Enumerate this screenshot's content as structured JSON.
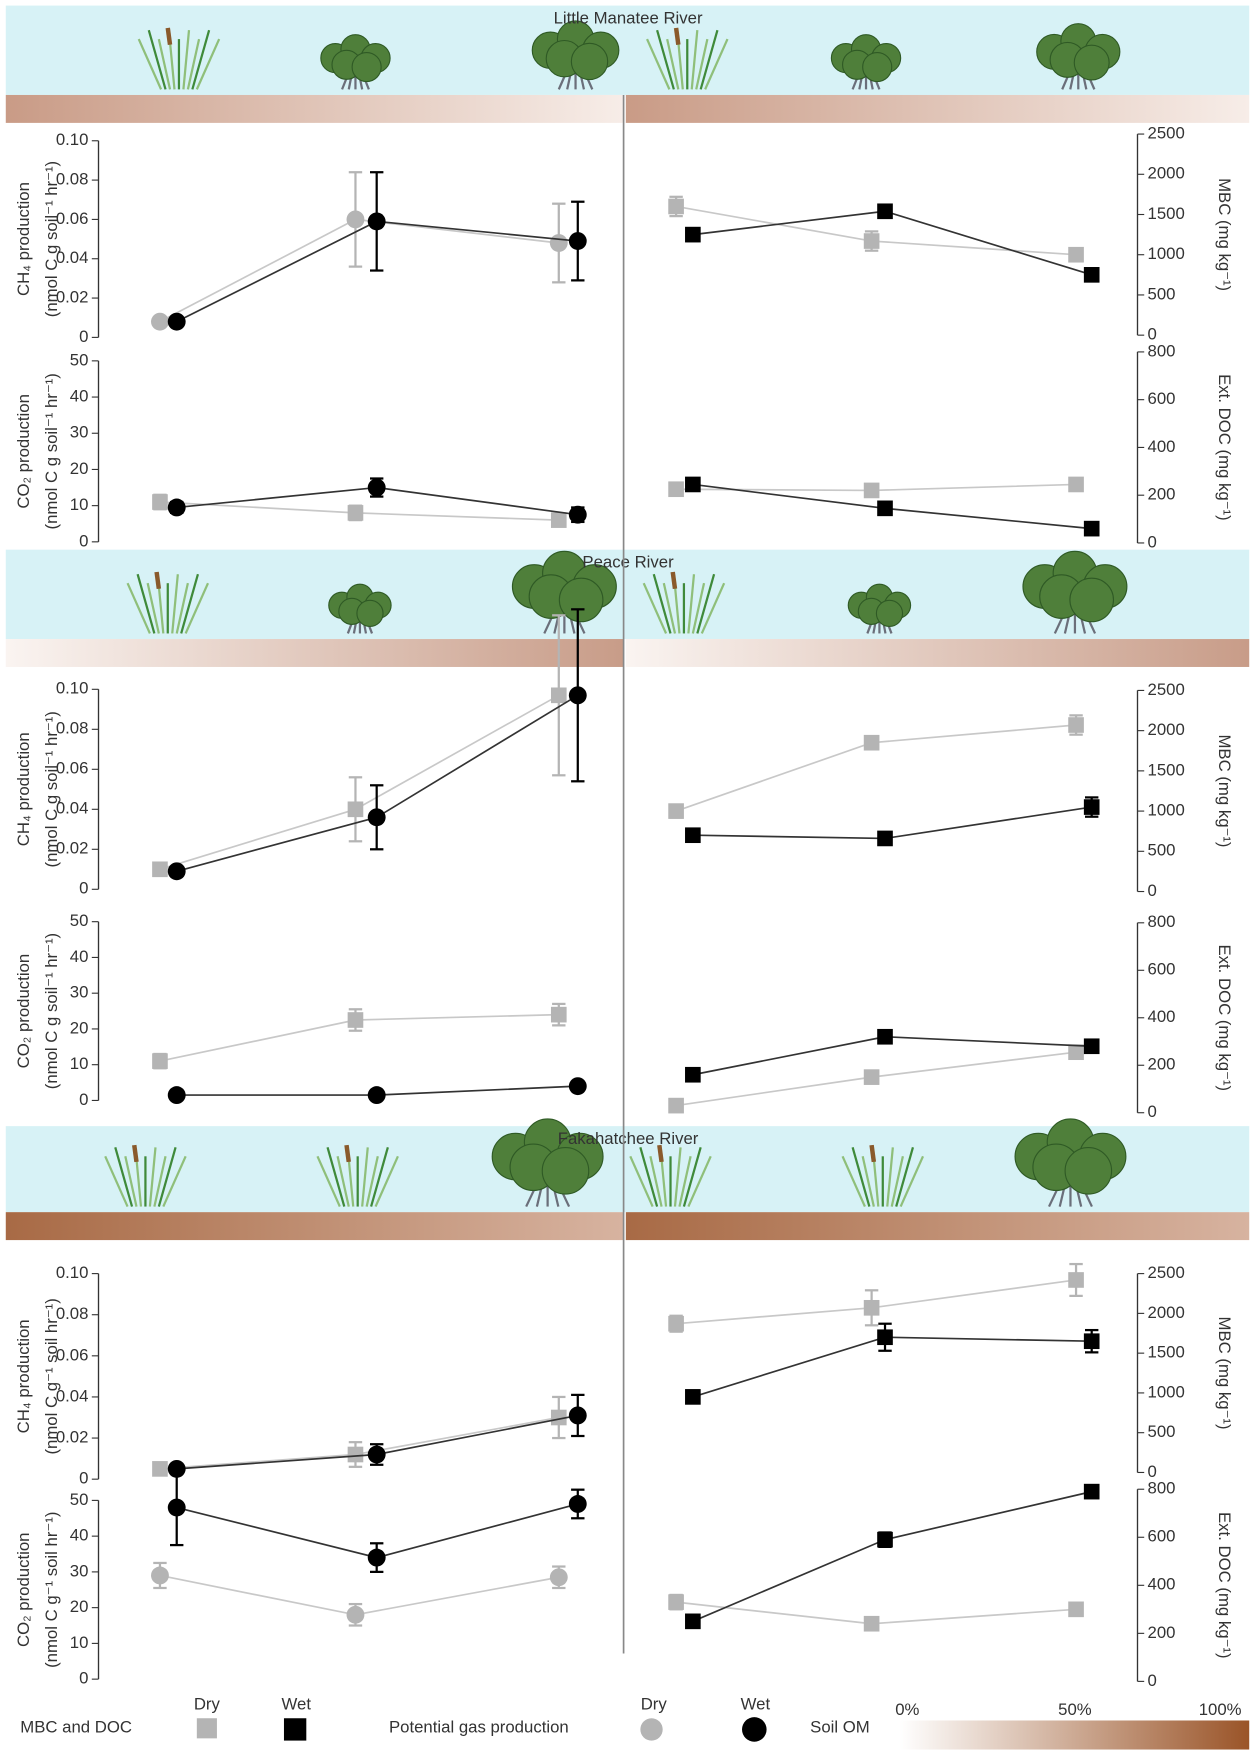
{
  "chart_data": [
    {
      "type": "line",
      "title": "Little Manatee River",
      "ylabel": [
        "CH₄ production",
        "(nmol C g soil⁻¹ hr⁻¹)"
      ],
      "ylim": [
        0,
        0.1
      ],
      "yticks": [
        0,
        0.02,
        0.04,
        0.06,
        0.08,
        {
          "value": 0.1,
          "label": "0.10"
        }
      ],
      "series": [
        {
          "color": "#b4b4b4",
          "marker": "circle",
          "values": [
            0.008,
            0.06,
            0.048
          ],
          "errors": [
            0.001,
            0.024,
            0.02
          ]
        },
        {
          "color": "#000000",
          "marker": "circle",
          "values": [
            0.008,
            0.059,
            0.049
          ],
          "errors": [
            0.001,
            0.025,
            0.02
          ]
        }
      ]
    },
    {
      "type": "line",
      "ylabel": [
        "CO₂ production",
        "(nmol C g soil⁻¹ hr⁻¹)"
      ],
      "ylim": [
        0,
        50
      ],
      "yticks": [
        0,
        10,
        20,
        30,
        40,
        50
      ],
      "series": [
        {
          "color": "#b4b4b4",
          "marker": "square",
          "values": [
            11,
            8,
            6
          ],
          "errors": [
            2,
            2,
            1
          ]
        },
        {
          "color": "#000000",
          "marker": "circle",
          "values": [
            9.5,
            15,
            7.5
          ],
          "errors": [
            1.5,
            2.5,
            2
          ]
        }
      ]
    },
    {
      "type": "line",
      "ylabel": [
        "MBC (mg kg⁻¹)"
      ],
      "ylim": [
        0,
        2500
      ],
      "yticks": [
        0,
        500,
        1000,
        1500,
        2000,
        2500
      ],
      "series": [
        {
          "color": "#b4b4b4",
          "marker": "square",
          "values": [
            1600,
            1170,
            1000
          ],
          "errors": [
            120,
            120,
            80
          ]
        },
        {
          "color": "#000000",
          "marker": "square",
          "values": [
            1250,
            1540,
            750
          ],
          "errors": [
            80,
            80,
            50
          ]
        }
      ]
    },
    {
      "type": "line",
      "ylabel": [
        "Ext. DOC (mg kg⁻¹)"
      ],
      "ylim": [
        0,
        800
      ],
      "yticks": [
        0,
        200,
        400,
        600,
        800
      ],
      "series": [
        {
          "color": "#b4b4b4",
          "marker": "square",
          "values": [
            225,
            220,
            245
          ],
          "errors": [
            10,
            10,
            10
          ]
        },
        {
          "color": "#000000",
          "marker": "square",
          "values": [
            245,
            145,
            60
          ],
          "errors": [
            10,
            10,
            5
          ]
        }
      ]
    },
    {
      "type": "line",
      "title": "Peace River",
      "ylabel": [
        "CH₄ production",
        "(nmol C g soil⁻¹ hr⁻¹)"
      ],
      "ylim": [
        0,
        0.1
      ],
      "yticks": [
        0,
        0.02,
        0.04,
        0.06,
        0.08,
        {
          "value": 0.1,
          "label": "0.10"
        }
      ],
      "series": [
        {
          "color": "#b4b4b4",
          "marker": "square",
          "values": [
            0.01,
            0.04,
            0.097
          ],
          "errors": [
            0.003,
            0.016,
            0.04
          ]
        },
        {
          "color": "#000000",
          "marker": "circle",
          "values": [
            0.009,
            0.036,
            0.097
          ],
          "errors": [
            0.002,
            0.016,
            0.043
          ]
        }
      ]
    },
    {
      "type": "line",
      "ylabel": [
        "CO₂ production",
        "(nmol C g soil⁻¹ hr⁻¹)"
      ],
      "ylim": [
        0,
        50
      ],
      "yticks": [
        0,
        10,
        20,
        30,
        40,
        50
      ],
      "series": [
        {
          "color": "#b4b4b4",
          "marker": "square",
          "values": [
            11,
            22.5,
            24
          ],
          "errors": [
            2,
            3,
            3
          ]
        },
        {
          "color": "#000000",
          "marker": "circle",
          "values": [
            1.5,
            1.5,
            4
          ],
          "errors": [
            0.5,
            0.5,
            0.5
          ]
        }
      ]
    },
    {
      "type": "line",
      "ylabel": [
        "MBC (mg kg⁻¹)"
      ],
      "ylim": [
        0,
        2500
      ],
      "yticks": [
        0,
        500,
        1000,
        1500,
        2000,
        2500
      ],
      "series": [
        {
          "color": "#b4b4b4",
          "marker": "square",
          "values": [
            1000,
            1850,
            2070
          ],
          "errors": [
            80,
            80,
            120
          ]
        },
        {
          "color": "#000000",
          "marker": "square",
          "values": [
            700,
            660,
            1050
          ],
          "errors": [
            30,
            40,
            120
          ]
        }
      ]
    },
    {
      "type": "line",
      "ylabel": [
        "Ext. DOC (mg kg⁻¹)"
      ],
      "ylim": [
        0,
        800
      ],
      "yticks": [
        0,
        200,
        400,
        600,
        800
      ],
      "series": [
        {
          "color": "#b4b4b4",
          "marker": "square",
          "values": [
            30,
            150,
            255
          ],
          "errors": [
            5,
            10,
            10
          ]
        },
        {
          "color": "#000000",
          "marker": "square",
          "values": [
            160,
            320,
            280
          ],
          "errors": [
            10,
            10,
            10
          ]
        }
      ]
    },
    {
      "type": "line",
      "title": "Fakahatchee River",
      "ylabel": [
        "CH₄ production",
        "(nmol C g⁻¹ soil hr⁻¹)"
      ],
      "ylim": [
        0,
        0.1
      ],
      "yticks": [
        0,
        0.02,
        0.04,
        0.06,
        0.08,
        {
          "value": 0.1,
          "label": "0.10"
        }
      ],
      "series": [
        {
          "color": "#b4b4b4",
          "marker": "square",
          "values": [
            0.005,
            0.012,
            0.03
          ],
          "errors": [
            0.003,
            0.006,
            0.01
          ]
        },
        {
          "color": "#000000",
          "marker": "circle",
          "values": [
            0.005,
            0.012,
            0.031
          ],
          "errors": [
            0.002,
            0.005,
            0.01
          ]
        }
      ]
    },
    {
      "type": "line",
      "ylabel": [
        "CO₂ production",
        "(nmol C g⁻¹ soil hr⁻¹)"
      ],
      "ylim": [
        0,
        50
      ],
      "yticks": [
        0,
        10,
        20,
        30,
        40,
        50
      ],
      "series": [
        {
          "color": "#b4b4b4",
          "marker": "circle",
          "values": [
            29,
            18,
            28.5
          ],
          "errors": [
            3.5,
            3,
            3
          ]
        },
        {
          "color": "#000000",
          "marker": "circle",
          "values": [
            48,
            34,
            49
          ],
          "errors": [
            10.5,
            4,
            4
          ]
        }
      ]
    },
    {
      "type": "line",
      "ylabel": [
        "MBC (mg kg⁻¹)"
      ],
      "ylim": [
        0,
        2500
      ],
      "yticks": [
        0,
        500,
        1000,
        1500,
        2000,
        2500
      ],
      "series": [
        {
          "color": "#b4b4b4",
          "marker": "square",
          "values": [
            1870,
            2070,
            2420
          ],
          "errors": [
            100,
            220,
            200
          ]
        },
        {
          "color": "#000000",
          "marker": "square",
          "values": [
            950,
            1700,
            1650
          ],
          "errors": [
            80,
            170,
            140
          ]
        }
      ]
    },
    {
      "type": "line",
      "ylabel": [
        "Ext. DOC (mg kg⁻¹)"
      ],
      "ylim": [
        0,
        800
      ],
      "yticks": [
        0,
        200,
        400,
        600,
        800
      ],
      "series": [
        {
          "color": "#b4b4b4",
          "marker": "square",
          "values": [
            330,
            240,
            300
          ],
          "errors": [
            30,
            25,
            25
          ]
        },
        {
          "color": "#000000",
          "marker": "square",
          "values": [
            250,
            590,
            790
          ],
          "errors": [
            25,
            30,
            20
          ]
        }
      ]
    }
  ],
  "legend": {
    "mbc_label": "MBC and DOC",
    "mbc_items": [
      "Dry",
      "Wet"
    ],
    "gas_label": "Potential gas production",
    "gas_items": [
      "Dry",
      "Wet"
    ],
    "soil_label": "Soil OM",
    "soil_ticks": [
      "0%",
      "50%",
      "100%"
    ]
  }
}
